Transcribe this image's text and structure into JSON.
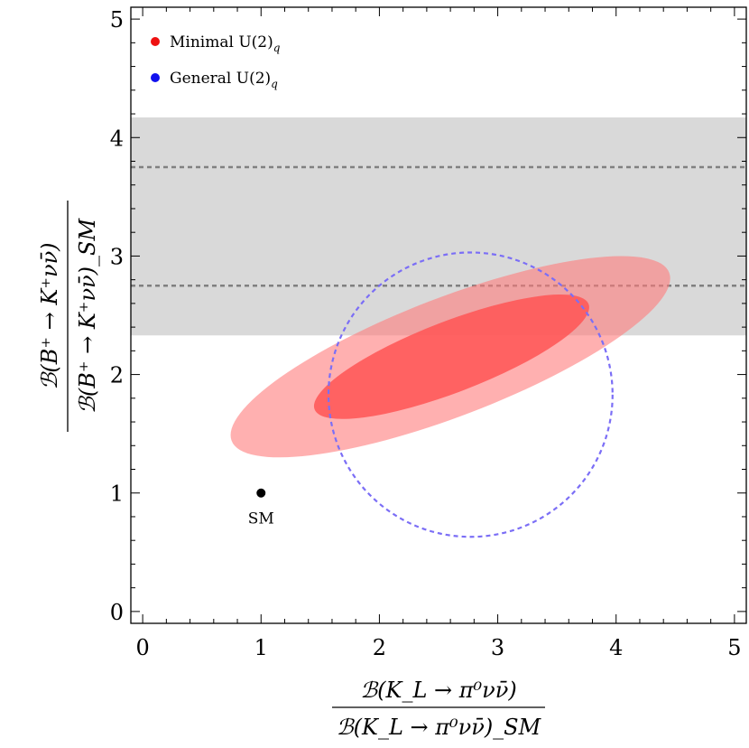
{
  "chart_data": {
    "type": "scatter",
    "title": "",
    "xlabel": {
      "numerator": "ℬ(K_L → π⁰νν̄)",
      "denominator": "ℬ(K_L → π⁰νν̄)_SM"
    },
    "ylabel": {
      "numerator": "ℬ(B⁺ → K⁺νν̄)",
      "denominator": "ℬ(B⁺ → K⁺νν̄)_SM"
    },
    "xlim": [
      -0.1,
      5.1
    ],
    "ylim": [
      -0.1,
      5.1
    ],
    "xticks": [
      "0",
      "1",
      "2",
      "3",
      "4",
      "5"
    ],
    "yticks": [
      "0",
      "1",
      "2",
      "3",
      "4",
      "5"
    ],
    "legend": {
      "placement": "top-left",
      "entries": [
        {
          "label": "Minimal U(2)",
          "subscript": "q",
          "color": "#ee1111"
        },
        {
          "label": "General U(2)",
          "subscript": "q",
          "color": "#1111ee"
        }
      ]
    },
    "band": {
      "y_min": 2.33,
      "y_max": 4.17,
      "dashed_lines_y": [
        2.75,
        3.75
      ],
      "fill": "#d9d9d9",
      "line_color": "#808080"
    },
    "ellipses": [
      {
        "name": "minimal-2sigma",
        "cx": 2.6,
        "cy": 2.15,
        "a": 1.98,
        "b": 0.5,
        "angle_deg": 21,
        "fill": "#ff7b7b",
        "opacity": 0.6
      },
      {
        "name": "minimal-1sigma",
        "cx": 2.61,
        "cy": 2.15,
        "a": 1.24,
        "b": 0.3,
        "angle_deg": 21,
        "fill": "#ff5555",
        "opacity": 0.85
      }
    ],
    "circle": {
      "name": "general-contour",
      "cx": 2.77,
      "cy": 1.83,
      "r": 1.2,
      "color": "#7b6ef6"
    },
    "points": [
      {
        "name": "SM",
        "x": 1,
        "y": 1,
        "label": "SM",
        "color": "#000000"
      }
    ]
  }
}
